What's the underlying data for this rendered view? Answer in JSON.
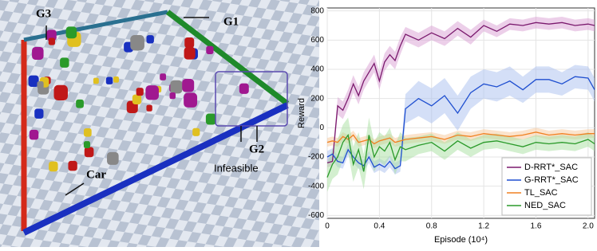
{
  "scene": {
    "labels": [
      "G3",
      "G1",
      "G2",
      "Car",
      "Infeasible"
    ]
  },
  "chart_data": {
    "type": "line",
    "x_label": "Episode (10⁴)",
    "y_label": "Reward",
    "x": [
      0,
      0.04,
      0.08,
      0.12,
      0.16,
      0.2,
      0.24,
      0.28,
      0.32,
      0.36,
      0.4,
      0.44,
      0.48,
      0.52,
      0.56,
      0.6,
      0.7,
      0.8,
      0.9,
      1.0,
      1.1,
      1.2,
      1.3,
      1.4,
      1.5,
      1.6,
      1.7,
      1.8,
      1.9,
      2.0,
      2.05
    ],
    "series": [
      {
        "name": "D-RRT*_SAC",
        "color": "#7b1a6e",
        "band_color": "#d9a0d3",
        "values": [
          -240,
          -230,
          150,
          120,
          200,
          300,
          220,
          320,
          380,
          440,
          320,
          450,
          500,
          460,
          560,
          640,
          600,
          650,
          610,
          680,
          620,
          700,
          660,
          710,
          700,
          720,
          710,
          720,
          700,
          710,
          700
        ],
        "errors": [
          30,
          30,
          60,
          60,
          60,
          60,
          60,
          60,
          60,
          60,
          60,
          60,
          60,
          60,
          60,
          50,
          50,
          50,
          50,
          50,
          50,
          40,
          40,
          40,
          40,
          40,
          40,
          40,
          40,
          40,
          40
        ]
      },
      {
        "name": "G-RRT*_SAC",
        "color": "#1f4fd0",
        "band_color": "#a9bff0",
        "values": [
          -200,
          -180,
          -230,
          -240,
          -150,
          -200,
          -240,
          -260,
          -200,
          -270,
          -250,
          -270,
          -230,
          -280,
          -260,
          130,
          200,
          150,
          220,
          100,
          240,
          300,
          280,
          320,
          260,
          330,
          330,
          300,
          350,
          340,
          260
        ],
        "errors": [
          40,
          40,
          40,
          40,
          40,
          40,
          40,
          40,
          40,
          40,
          40,
          40,
          40,
          40,
          40,
          100,
          120,
          120,
          120,
          120,
          110,
          100,
          100,
          100,
          90,
          90,
          90,
          80,
          80,
          80,
          80
        ]
      },
      {
        "name": "TL_SAC",
        "color": "#f08020",
        "band_color": "#f8c89a",
        "values": [
          -100,
          -90,
          -100,
          -60,
          -80,
          -50,
          -100,
          -90,
          -80,
          -110,
          -90,
          -80,
          -70,
          -100,
          -90,
          -80,
          -70,
          -60,
          -80,
          -50,
          -60,
          -40,
          -50,
          -60,
          -50,
          -30,
          -50,
          -40,
          -50,
          -40,
          -40
        ],
        "errors": [
          30,
          30,
          30,
          30,
          30,
          30,
          30,
          30,
          30,
          30,
          30,
          30,
          30,
          30,
          30,
          30,
          30,
          30,
          30,
          30,
          30,
          30,
          30,
          30,
          30,
          30,
          30,
          30,
          30,
          30,
          30
        ]
      },
      {
        "name": "NED_SAC",
        "color": "#2a9a2a",
        "band_color": "#a8e0a0",
        "values": [
          -340,
          -250,
          -200,
          -100,
          -50,
          -250,
          -150,
          -300,
          -50,
          -200,
          -130,
          -160,
          -100,
          -220,
          -130,
          -150,
          -120,
          -100,
          -160,
          -90,
          -140,
          -100,
          -90,
          -110,
          -130,
          -100,
          -110,
          -100,
          -110,
          -80,
          -110
        ],
        "errors": [
          100,
          100,
          120,
          120,
          120,
          120,
          120,
          120,
          120,
          100,
          100,
          100,
          100,
          100,
          100,
          80,
          60,
          60,
          60,
          60,
          60,
          50,
          50,
          50,
          50,
          50,
          50,
          50,
          50,
          50,
          50
        ]
      }
    ],
    "xlim": [
      0,
      2.05
    ],
    "ylim": [
      -620,
      820
    ],
    "xticks": [
      0,
      0.4,
      0.8,
      1.2,
      1.6,
      {
        "value": 2,
        "label": "2.0"
      }
    ],
    "yticks": [
      -600,
      -400,
      -200,
      0,
      200,
      400,
      600,
      800
    ],
    "grid": true,
    "legend": "lower right"
  }
}
